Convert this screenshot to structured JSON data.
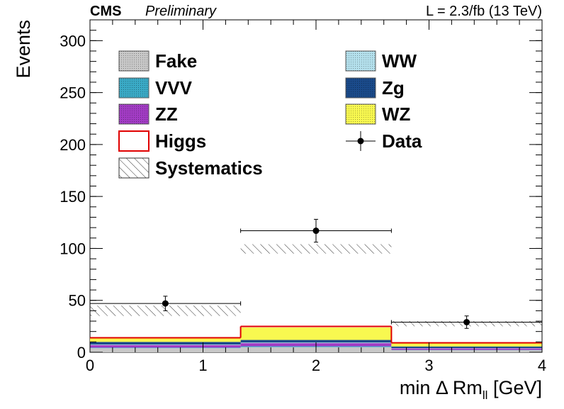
{
  "header": {
    "experiment": "CMS",
    "status": "Preliminary",
    "luminosity": "L = 2.3/fb (13 TeV)"
  },
  "chart_data": {
    "type": "bar",
    "stacked": true,
    "xlabel": "min Δ Rm",
    "xlabel_subscript": "ll",
    "xlabel_unit": " [GeV]",
    "ylabel": "Events",
    "xlim": [
      0,
      4
    ],
    "ylim": [
      0,
      320
    ],
    "x_ticks": [
      "0",
      "1",
      "2",
      "3",
      "4"
    ],
    "y_ticks": [
      "0",
      "50",
      "100",
      "150",
      "200",
      "250",
      "300"
    ],
    "bin_edges": [
      0,
      1.333,
      2.667,
      4
    ],
    "series": [
      {
        "name": "Fake",
        "color": "#c8c8c8",
        "values": [
          4.0,
          5.0,
          2.0
        ]
      },
      {
        "name": "VVV",
        "color": "#3aaac6",
        "values": [
          0.5,
          0.8,
          0.3
        ]
      },
      {
        "name": "ZZ",
        "color": "#a23cc4",
        "values": [
          2.5,
          3.0,
          1.5
        ]
      },
      {
        "name": "WW",
        "color": "#b4e0ec",
        "values": [
          0.5,
          0.6,
          0.3
        ]
      },
      {
        "name": "Zg",
        "color": "#1a4a8a",
        "values": [
          2.5,
          2.5,
          1.5
        ]
      },
      {
        "name": "WZ",
        "color": "#f8f850",
        "values": [
          3.5,
          12.0,
          3.0
        ]
      },
      {
        "name": "Higgs",
        "color": "#e00000",
        "values": [
          0.5,
          1.0,
          0.5
        ]
      }
    ],
    "systematics": {
      "name": "Systematics",
      "bands": [
        [
          35,
          45
        ],
        [
          95,
          104
        ],
        [
          25,
          30
        ]
      ]
    },
    "data": {
      "name": "Data",
      "x": [
        0.667,
        2.0,
        3.333
      ],
      "y": [
        47,
        117,
        29
      ],
      "y_err": [
        7,
        11,
        6
      ]
    },
    "legend": {
      "placement": "top",
      "entries": [
        {
          "name": "Fake",
          "style": "fill",
          "color": "#c8c8c8"
        },
        {
          "name": "WW",
          "style": "fill",
          "color": "#b4e0ec"
        },
        {
          "name": "VVV",
          "style": "fill",
          "color": "#3aaac6"
        },
        {
          "name": "Zg",
          "style": "fill",
          "color": "#1a4a8a"
        },
        {
          "name": "ZZ",
          "style": "fill",
          "color": "#a23cc4"
        },
        {
          "name": "WZ",
          "style": "fill",
          "color": "#f8f850"
        },
        {
          "name": "Higgs",
          "style": "line",
          "color": "#e00000"
        },
        {
          "name": "Data",
          "style": "marker",
          "color": "#000000"
        },
        {
          "name": "Systematics",
          "style": "hatch",
          "color": "#333333"
        }
      ]
    }
  }
}
